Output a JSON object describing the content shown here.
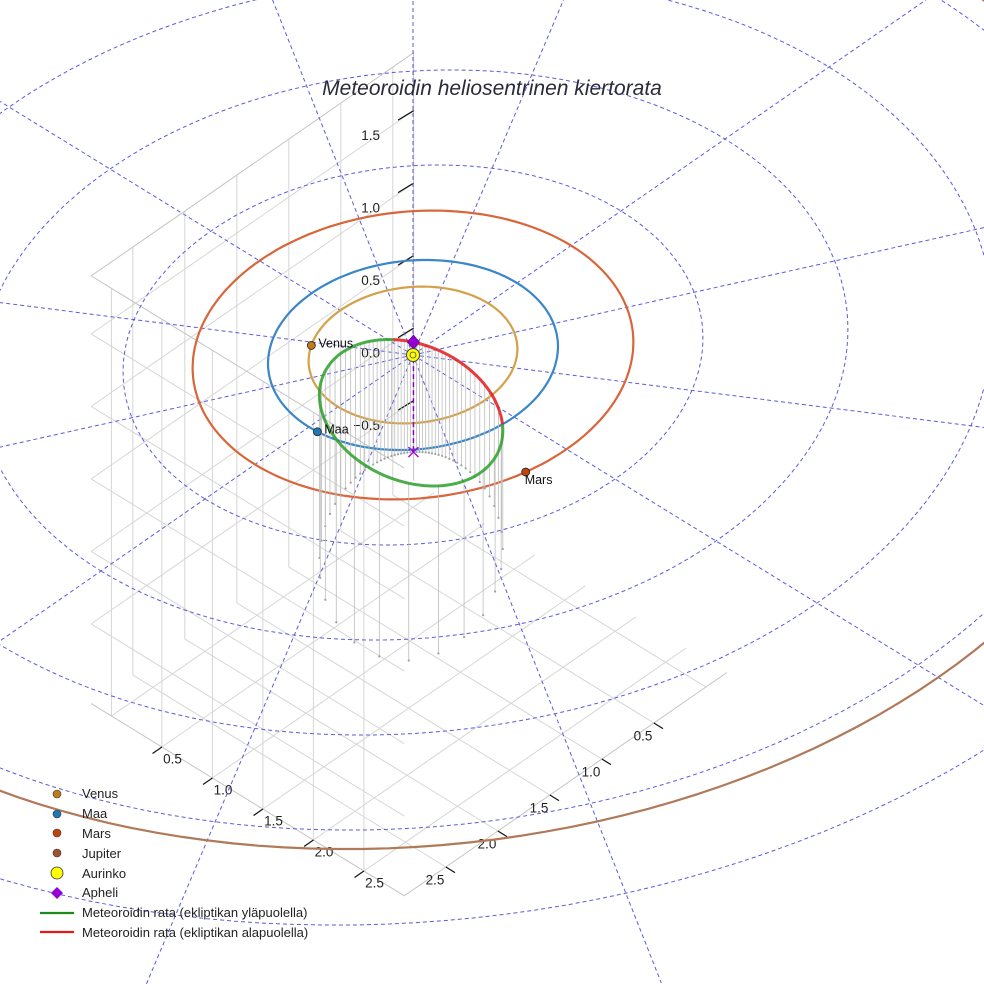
{
  "chart_data": {
    "type": "3d-line",
    "title": "Meteoroidin heliosentrinen kiertorata",
    "axes": {
      "x": {
        "ticks": [
          0.5,
          1.0,
          1.5,
          2.0,
          2.5
        ],
        "tick_labels": [
          "0.5",
          "1.0",
          "1.5",
          "2.0",
          "2.5"
        ]
      },
      "y": {
        "ticks": [
          0.5,
          1.0,
          1.5,
          2.0,
          2.5
        ],
        "tick_labels": [
          "0.5",
          "1.0",
          "1.5",
          "2.0",
          "2.5"
        ]
      },
      "z": {
        "ticks": [
          -0.5,
          0.0,
          0.5,
          1.0,
          1.5
        ],
        "tick_labels": [
          "−0.5",
          "0.0",
          "0.5",
          "1.0",
          "1.5"
        ]
      }
    },
    "grid": true,
    "planets": [
      {
        "name": "Venus",
        "label": "Venus",
        "orbit_radius_au": 0.72,
        "color": "#c07a1a",
        "orbit_color": "#d4a14a"
      },
      {
        "name": "Maa",
        "label": "Maa",
        "orbit_radius_au": 1.0,
        "color": "#1f77b4",
        "orbit_color": "#3a86c8"
      },
      {
        "name": "Mars",
        "label": "Mars",
        "orbit_radius_au": 1.52,
        "color": "#c0440e",
        "orbit_color": "#d9653a"
      },
      {
        "name": "Jupiter",
        "orbit_radius_au": 5.2,
        "color": "#a0522d",
        "orbit_color": "#b07a5a"
      }
    ],
    "sun": {
      "name": "Aurinko",
      "color": "#ffff00"
    },
    "aphelion": {
      "name": "Apheli",
      "color": "#9400d3"
    },
    "meteoroid_orbit": {
      "perihelion_au": 0.2,
      "aphelion_au": 2.0,
      "above_ecliptic_color": "#2ca02c",
      "below_ecliptic_color": "#e31a1c"
    },
    "legend_position": "bottom-left",
    "legend": [
      {
        "label": "Venus",
        "symbol": "dot",
        "color": "#c07a1a"
      },
      {
        "label": "Maa",
        "symbol": "dot",
        "color": "#1f77b4"
      },
      {
        "label": "Mars",
        "symbol": "dot",
        "color": "#c0440e"
      },
      {
        "label": "Jupiter",
        "symbol": "dot",
        "color": "#a0522d"
      },
      {
        "label": "Aurinko",
        "symbol": "sun",
        "color": "#ffff00"
      },
      {
        "label": "Apheli",
        "symbol": "diamond",
        "color": "#9400d3"
      },
      {
        "label": "Meteoroidin rata (ekliptikan yläpuolella)",
        "symbol": "line",
        "color": "#1e8a1e"
      },
      {
        "label": "Meteoroidin rata (ekliptikan alapuolella)",
        "symbol": "line",
        "color": "#e31a1c"
      }
    ]
  }
}
